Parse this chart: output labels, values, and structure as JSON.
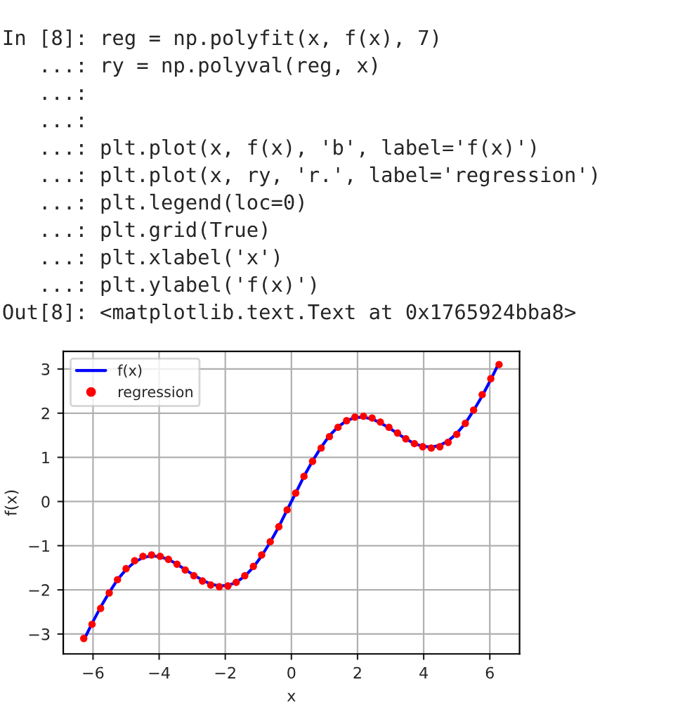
{
  "chart_data": {
    "type": "line",
    "xlabel": "x",
    "ylabel": "f(x)",
    "xlim": [
      -6.9,
      6.9
    ],
    "xticks": [
      {
        "value": -6,
        "label": "−6"
      },
      {
        "value": -4,
        "label": "−4"
      },
      {
        "value": -2,
        "label": "−2"
      },
      0,
      2,
      4,
      6
    ],
    "ylim": [
      -3.45,
      3.4
    ],
    "yticks": [
      {
        "value": -3,
        "label": "−3"
      },
      {
        "value": -2,
        "label": "−2"
      },
      {
        "value": -1,
        "label": "−1"
      },
      0,
      1,
      2,
      3
    ],
    "grid": true,
    "legend": "top left",
    "annotations": [
      "In [8]: reg = np.polyfit(x, f(x), 7)",
      "   ...: ry = np.polyval(reg, x)",
      "   ...:",
      "   ...:",
      "   ...: plt.plot(x, f(x), 'b', label='f(x)')",
      "   ...: plt.plot(x, ry, 'r.', label='regression')",
      "   ...: plt.legend(loc=0)",
      "   ...: plt.grid(True)",
      "   ...: plt.xlabel('x')",
      "   ...: plt.ylabel('f(x)')",
      "Out[8]: <matplotlib.text.Text at 0x1765924bba8>"
    ],
    "x": [
      -6.28,
      -6.03,
      -5.77,
      -5.51,
      -5.26,
      -5.0,
      -4.74,
      -4.49,
      -4.23,
      -3.97,
      -3.72,
      -3.46,
      -3.21,
      -2.95,
      -2.69,
      -2.44,
      -2.18,
      -1.92,
      -1.67,
      -1.41,
      -1.15,
      -0.9,
      -0.64,
      -0.38,
      -0.13,
      0.13,
      0.38,
      0.64,
      0.9,
      1.15,
      1.41,
      1.67,
      1.92,
      2.18,
      2.44,
      2.69,
      2.95,
      3.21,
      3.46,
      3.72,
      3.97,
      4.23,
      4.49,
      4.74,
      5.0,
      5.26,
      5.51,
      5.77,
      6.03,
      6.28
    ],
    "series": [
      {
        "name": "f(x)",
        "color": "#0000ff",
        "marker": "none",
        "values": [
          -3.14,
          -2.76,
          -2.39,
          -2.06,
          -1.77,
          -1.54,
          -1.37,
          -1.27,
          -1.23,
          -1.25,
          -1.31,
          -1.42,
          -1.54,
          -1.67,
          -1.78,
          -1.87,
          -1.91,
          -1.9,
          -1.83,
          -1.69,
          -1.49,
          -1.23,
          -0.92,
          -0.57,
          -0.19,
          0.19,
          0.57,
          0.92,
          1.23,
          1.49,
          1.69,
          1.83,
          1.9,
          1.91,
          1.87,
          1.78,
          1.67,
          1.54,
          1.42,
          1.31,
          1.25,
          1.23,
          1.27,
          1.37,
          1.54,
          1.77,
          2.06,
          2.39,
          2.76,
          3.14
        ]
      },
      {
        "name": "regression",
        "type": "scatter",
        "color": "#ff0000",
        "marker": "circle",
        "values": [
          -3.1,
          -2.78,
          -2.42,
          -2.07,
          -1.77,
          -1.52,
          -1.34,
          -1.24,
          -1.21,
          -1.24,
          -1.31,
          -1.42,
          -1.55,
          -1.68,
          -1.8,
          -1.89,
          -1.93,
          -1.91,
          -1.83,
          -1.68,
          -1.47,
          -1.21,
          -0.91,
          -0.57,
          -0.19,
          0.19,
          0.57,
          0.91,
          1.21,
          1.47,
          1.68,
          1.83,
          1.91,
          1.93,
          1.89,
          1.8,
          1.68,
          1.55,
          1.42,
          1.31,
          1.24,
          1.21,
          1.24,
          1.34,
          1.52,
          1.77,
          2.07,
          2.42,
          2.78,
          3.1
        ]
      }
    ]
  }
}
